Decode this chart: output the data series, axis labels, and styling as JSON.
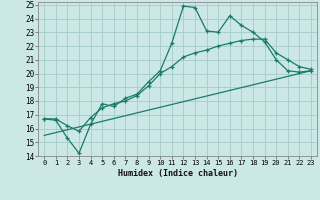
{
  "xlabel": "Humidex (Indice chaleur)",
  "bg_color": "#cce8e6",
  "line_color": "#1a7a6e",
  "grid_color": "#aacfcc",
  "xlim": [
    -0.5,
    23.5
  ],
  "ylim": [
    14,
    25.2
  ],
  "xticks": [
    0,
    1,
    2,
    3,
    4,
    5,
    6,
    7,
    8,
    9,
    10,
    11,
    12,
    13,
    14,
    15,
    16,
    17,
    18,
    19,
    20,
    21,
    22,
    23
  ],
  "yticks": [
    14,
    15,
    16,
    17,
    18,
    19,
    20,
    21,
    22,
    23,
    24,
    25
  ],
  "line1_x": [
    0,
    1,
    2,
    3,
    4,
    5,
    6,
    7,
    8,
    9,
    10,
    11,
    12,
    13,
    14,
    15,
    16,
    17,
    18,
    19,
    20,
    21,
    22,
    23
  ],
  "line1_y": [
    16.7,
    16.6,
    15.3,
    14.2,
    16.3,
    17.8,
    17.6,
    18.2,
    18.5,
    19.4,
    20.2,
    22.2,
    24.9,
    24.8,
    23.1,
    23.0,
    24.2,
    23.5,
    23.0,
    22.3,
    21.0,
    20.2,
    20.1,
    20.2
  ],
  "line2_x": [
    0,
    1,
    2,
    3,
    4,
    5,
    6,
    7,
    8,
    9,
    10,
    11,
    12,
    13,
    14,
    15,
    16,
    17,
    18,
    19,
    20,
    21,
    22,
    23
  ],
  "line2_y": [
    16.7,
    16.7,
    16.2,
    15.8,
    16.8,
    17.5,
    17.8,
    18.0,
    18.4,
    19.1,
    20.0,
    20.5,
    21.2,
    21.5,
    21.7,
    22.0,
    22.2,
    22.4,
    22.5,
    22.5,
    21.5,
    21.0,
    20.5,
    20.3
  ],
  "line3_x": [
    0,
    23
  ],
  "line3_y": [
    15.5,
    20.2
  ]
}
